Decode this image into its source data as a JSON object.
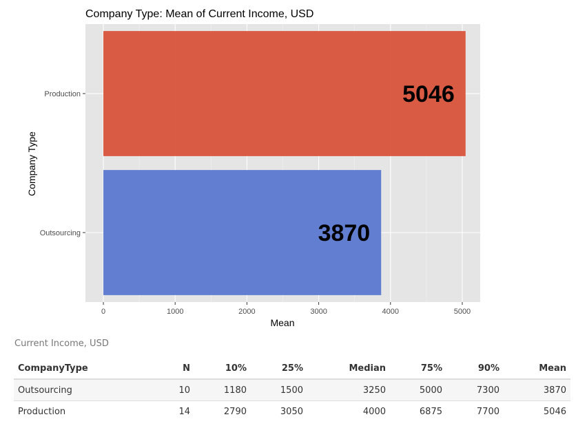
{
  "chart_data": {
    "type": "bar",
    "orientation": "horizontal",
    "title": "Company Type: Mean of Current Income, USD",
    "xlabel": "Mean",
    "ylabel": "Company Type",
    "categories": [
      "Production",
      "Outsourcing"
    ],
    "values": [
      5046,
      3870
    ],
    "data_labels": [
      "5046",
      "3870"
    ],
    "colors": [
      "#d9533b",
      "#5b78d0"
    ],
    "xlim": [
      -250,
      5250
    ],
    "x_ticks": [
      0,
      1000,
      2000,
      3000,
      4000,
      5000
    ],
    "x_tick_labels": [
      "0",
      "1000",
      "2000",
      "3000",
      "4000",
      "5000"
    ],
    "grid": true,
    "panel_background": "#e5e5e5"
  },
  "table": {
    "caption": "Current Income, USD",
    "columns": [
      "CompanyType",
      "N",
      "10%",
      "25%",
      "Median",
      "75%",
      "90%",
      "Mean"
    ],
    "rows": [
      [
        "Outsourcing",
        "10",
        "1180",
        "1500",
        "3250",
        "5000",
        "7300",
        "3870"
      ],
      [
        "Production",
        "14",
        "2790",
        "3050",
        "4000",
        "6875",
        "7700",
        "5046"
      ]
    ]
  }
}
